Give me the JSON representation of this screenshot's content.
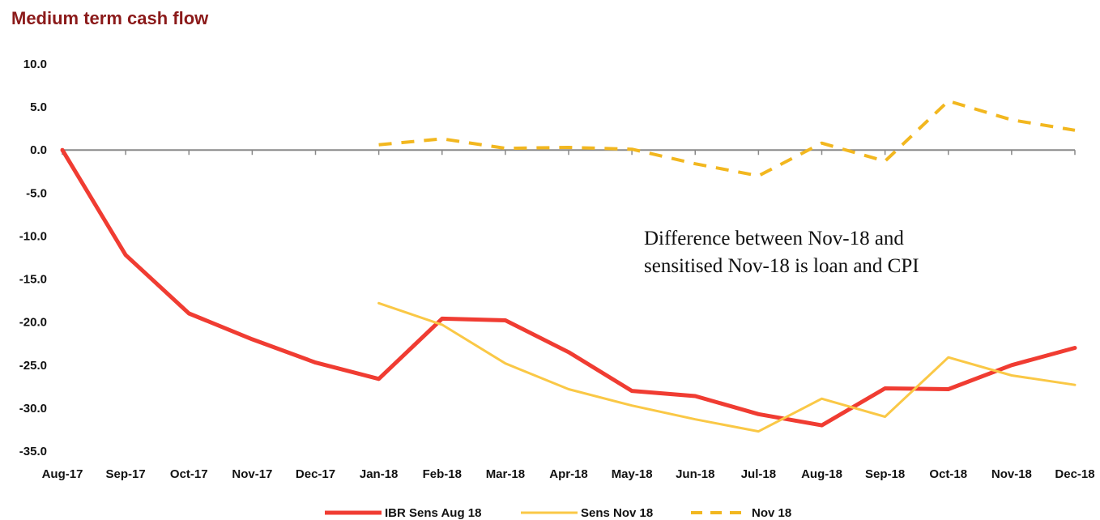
{
  "chart_data": {
    "type": "line",
    "title": "Medium term cash flow",
    "categories": [
      "Aug-17",
      "Sep-17",
      "Oct-17",
      "Nov-17",
      "Dec-17",
      "Jan-18",
      "Feb-18",
      "Mar-18",
      "Apr-18",
      "May-18",
      "Jun-18",
      "Jul-18",
      "Aug-18",
      "Sep-18",
      "Oct-18",
      "Nov-18",
      "Dec-18"
    ],
    "ylim": [
      -35,
      10
    ],
    "yticks": [
      "10.0",
      "5.0",
      "0.0",
      "-5.0",
      "-10.0",
      "-15.0",
      "-20.0",
      "-25.0",
      "-30.0",
      "-35.0"
    ],
    "series": [
      {
        "name": "IBR Sens Aug 18",
        "color": "#F03C32",
        "style": "solid",
        "values": [
          0,
          -12.2,
          -19.0,
          -22.0,
          -24.7,
          -26.6,
          -19.6,
          -19.8,
          -23.5,
          -28.0,
          -28.6,
          -30.7,
          -32.0,
          -27.7,
          -27.8,
          -25.0,
          -23.0
        ]
      },
      {
        "name": "Sens Nov 18",
        "color": "#FAC846",
        "style": "solid",
        "values": [
          null,
          null,
          null,
          null,
          null,
          -17.8,
          -20.3,
          -24.8,
          -27.8,
          -29.7,
          -31.3,
          -32.7,
          -28.9,
          -31.0,
          -24.1,
          -26.2,
          -27.3
        ]
      },
      {
        "name": "Nov 18",
        "color": "#F2B71F",
        "style": "dashed",
        "values": [
          null,
          null,
          null,
          null,
          null,
          0.6,
          1.3,
          0.2,
          0.3,
          0.1,
          -1.6,
          -3.0,
          0.8,
          -1.3,
          5.7,
          3.5,
          2.3
        ]
      }
    ],
    "annotation": [
      "Difference between Nov-18 and",
      "sensitised Nov-18 is loan and CPI"
    ],
    "legend_position": "bottom"
  }
}
